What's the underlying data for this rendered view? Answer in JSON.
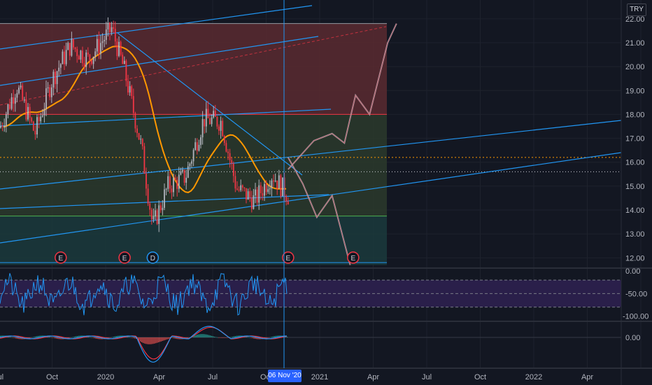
{
  "currency": "TRY",
  "crosshair_date": "06 Nov '20",
  "colors": {
    "background": "#131722",
    "grid": "#1e222d",
    "candle_up": "#b2b5be",
    "candle_down": "#f23645",
    "trend_lines": "#2196f3",
    "moving_average": "#ff9800",
    "zone_top": "#5b2a30",
    "zone_mid": "#2b3a2c",
    "zone_bottom": "#1b3a3c",
    "rsi_band": "#2a1f4a",
    "macd_line": "#2196f3",
    "signal_line": "#f23645"
  },
  "chart_data": {
    "type": "candlestick",
    "x_tick_labels": [
      "Jul",
      "Oct",
      "2020",
      "Apr",
      "Jul",
      "Oct",
      "2021",
      "Apr",
      "Jul",
      "Oct",
      "2022",
      "Apr"
    ],
    "y_tick_labels": [
      "22.00",
      "21.00",
      "20.00",
      "19.00",
      "18.00",
      "17.00",
      "16.00",
      "15.00",
      "14.00",
      "13.00",
      "12.00"
    ],
    "y_range": [
      11.6,
      22.2
    ],
    "price_path": [
      {
        "date": "2019-07-01",
        "price": 17.3
      },
      {
        "date": "2019-08-01",
        "price": 19.2
      },
      {
        "date": "2019-09-01",
        "price": 17.2
      },
      {
        "date": "2019-10-01",
        "price": 19.5
      },
      {
        "date": "2019-11-01",
        "price": 20.9
      },
      {
        "date": "2019-12-01",
        "price": 20.3
      },
      {
        "date": "2020-01-10",
        "price": 21.6
      },
      {
        "date": "2020-02-01",
        "price": 19.8
      },
      {
        "date": "2020-03-01",
        "price": 16.6
      },
      {
        "date": "2020-03-20",
        "price": 13.3
      },
      {
        "date": "2020-04-15",
        "price": 15.0
      },
      {
        "date": "2020-05-15",
        "price": 15.4
      },
      {
        "date": "2020-06-15",
        "price": 17.8
      },
      {
        "date": "2020-07-15",
        "price": 17.7
      },
      {
        "date": "2020-08-10",
        "price": 14.9
      },
      {
        "date": "2020-09-10",
        "price": 14.4
      },
      {
        "date": "2020-10-10",
        "price": 15.5
      },
      {
        "date": "2020-11-06",
        "price": 14.6
      }
    ],
    "projection_upper": [
      {
        "date": "2020-11-06",
        "price": 15.7
      },
      {
        "date": "2020-12-20",
        "price": 16.9
      },
      {
        "date": "2021-01-20",
        "price": 17.2
      },
      {
        "date": "2021-02-10",
        "price": 16.8
      },
      {
        "date": "2021-03-01",
        "price": 18.8
      },
      {
        "date": "2021-03-25",
        "price": 18.0
      },
      {
        "date": "2021-04-25",
        "price": 21.0
      },
      {
        "date": "2021-05-10",
        "price": 21.8
      }
    ],
    "projection_lower": [
      {
        "date": "2020-11-06",
        "price": 16.2
      },
      {
        "date": "2020-12-01",
        "price": 15.1
      },
      {
        "date": "2020-12-25",
        "price": 13.7
      },
      {
        "date": "2021-01-20",
        "price": 14.6
      },
      {
        "date": "2021-02-20",
        "price": 11.7
      }
    ],
    "horizontal_levels": [
      21.8,
      18.0,
      16.2,
      15.6,
      13.75,
      11.8
    ],
    "zones": [
      {
        "from": 18.0,
        "to": 21.8,
        "name": "top"
      },
      {
        "from": 13.75,
        "to": 18.0,
        "name": "mid"
      },
      {
        "from": 11.7,
        "to": 13.75,
        "name": "bottom"
      }
    ],
    "events": [
      {
        "date": "2019-10-15",
        "label": "E"
      },
      {
        "date": "2020-02-01",
        "label": "E"
      },
      {
        "date": "2020-03-20",
        "label": "D"
      },
      {
        "date": "2020-11-06",
        "label": "E"
      },
      {
        "date": "2021-02-25",
        "label": "E"
      }
    ],
    "rsi": {
      "y_tick_labels": [
        "0.00",
        "-50.00",
        "-100.00"
      ],
      "y_range": [
        -110,
        5
      ],
      "band": [
        -80,
        -20
      ],
      "level_mid": -50
    },
    "macd": {
      "y_tick_labels": [
        "0.00"
      ]
    }
  }
}
